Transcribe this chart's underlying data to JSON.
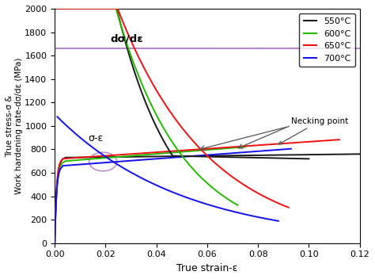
{
  "xlabel": "True strain-ε",
  "ylabel": "True stress-σ &\nWork hardening rate-dσ/dε (MPa)",
  "xlim": [
    0.0,
    0.12
  ],
  "ylim": [
    0,
    2000
  ],
  "xticks": [
    0.0,
    0.02,
    0.04,
    0.06,
    0.08,
    0.1,
    0.12
  ],
  "yticks": [
    0,
    200,
    400,
    600,
    800,
    1000,
    1200,
    1400,
    1600,
    1800,
    2000
  ],
  "colors": {
    "550": "#1a1a1a",
    "600": "#22bb00",
    "650": "#ee1111",
    "700": "#1111ee"
  },
  "legend": [
    "550°C",
    "600°C",
    "650°C",
    "700°C"
  ],
  "annotation_necking": "Necking point",
  "annotation_sigma": "σ-ε",
  "annotation_dsigma": "dσ/dε",
  "bg_color": "#ffffff"
}
